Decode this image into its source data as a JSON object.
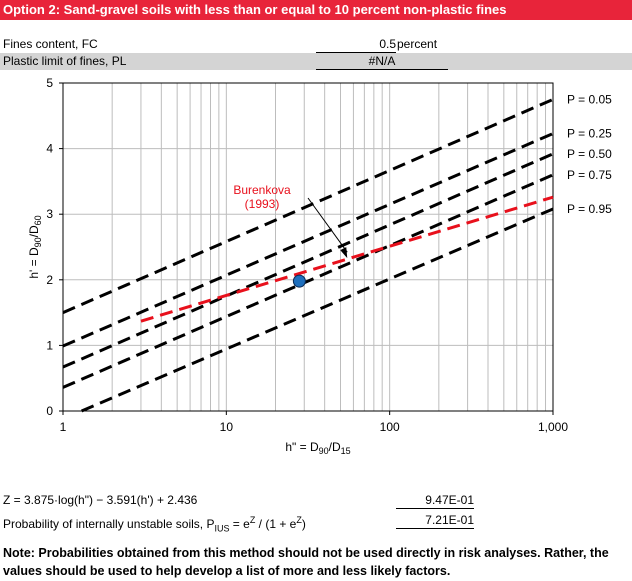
{
  "header": {
    "title": "Option 2: Sand-gravel soils with less than or equal to 10 percent non-plastic fines"
  },
  "inputs": {
    "fines_label": "Fines content, FC",
    "fines_value": "0.5",
    "fines_unit": "percent",
    "pl_label": "Plastic limit of fines, PL",
    "pl_value": "#N/A"
  },
  "chart_data": {
    "type": "line",
    "xscale": "log",
    "xlim": [
      1,
      1000
    ],
    "ylim": [
      0,
      5
    ],
    "xticks": [
      "1",
      "10",
      "100",
      "1,000"
    ],
    "yticks": [
      "0",
      "1",
      "2",
      "3",
      "4",
      "5"
    ],
    "xlabel": "h\" = D90/D15",
    "ylabel": "h' = D90/D60",
    "series": [
      {
        "name": "P = 0.05",
        "color": "#000000",
        "x": [
          1,
          1000
        ],
        "y": [
          1.5,
          4.75
        ]
      },
      {
        "name": "P = 0.25",
        "color": "#000000",
        "x": [
          1,
          1000
        ],
        "y": [
          0.99,
          4.23
        ]
      },
      {
        "name": "P = 0.50",
        "color": "#000000",
        "x": [
          1,
          1000
        ],
        "y": [
          0.67,
          3.92
        ]
      },
      {
        "name": "P = 0.75",
        "color": "#000000",
        "x": [
          1,
          1000
        ],
        "y": [
          0.36,
          3.6
        ]
      },
      {
        "name": "P = 0.95",
        "color": "#000000",
        "x": [
          1.3,
          1000
        ],
        "y": [
          0,
          3.08
        ]
      },
      {
        "name": "Burenkova (1993)",
        "color": "#e8101c",
        "x": [
          3,
          1000
        ],
        "y": [
          1.37,
          3.26
        ]
      }
    ],
    "point": {
      "x": 28,
      "y": 1.98,
      "color": "#1e6fbd"
    },
    "annotation": {
      "text": [
        "Burenkova",
        "(1993)"
      ],
      "color": "#e8101c",
      "target_x": 55,
      "target_y": 2.33
    }
  },
  "results": {
    "z_label": "Z = 3.875·log(h\") − 3.591(h') + 2.436",
    "z_value": "9.47E-01",
    "p_label_a": "Probability of internally unstable soils, P",
    "p_label_sub": "IUS",
    "p_label_b": " = e",
    "p_label_sup1": "Z",
    "p_label_c": " / (1 + e",
    "p_label_sup2": "Z",
    "p_label_d": ")",
    "p_value": "7.21E-01"
  },
  "note": "Note: Probabilities obtained from this method should not be used directly in risk analyses. Rather, the values should be used to help develop a list of more and less likely factors."
}
